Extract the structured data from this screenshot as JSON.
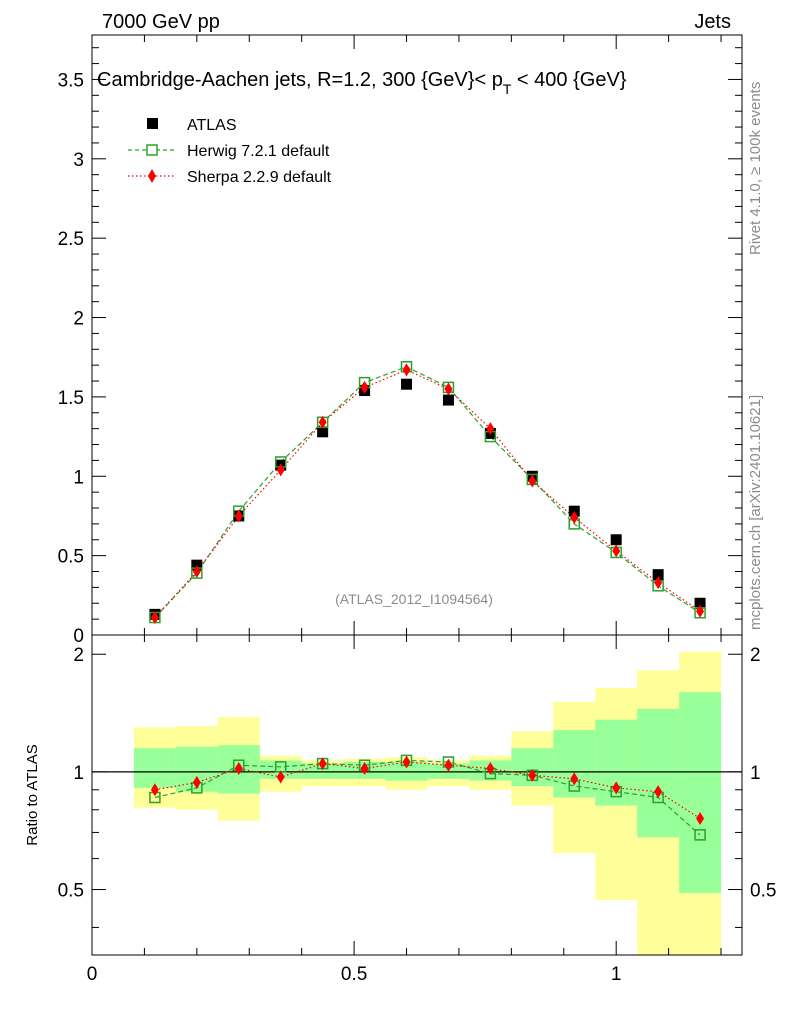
{
  "header": {
    "left": "7000 GeV pp",
    "right": "Jets"
  },
  "side_labels": {
    "rivet": "Rivet 4.1.0, ≥ 100k events",
    "mcplots": "mcplots.cern.ch [arXiv:2401.10621]"
  },
  "chart_data": {
    "type": "scatter",
    "title": "Cambridge-Aachen jets, R=1.2,  300 {GeV}< p_T < 400 {GeV}",
    "title_parts": {
      "pre": "Cambridge-Aachen jets, R=1.2,  300 {GeV}< p",
      "sub": "T",
      "post": " < 400 {GeV}"
    },
    "analysis_label": "(ATLAS_2012_I1094564)",
    "x": [
      0.12,
      0.2,
      0.28,
      0.36,
      0.44,
      0.52,
      0.6,
      0.68,
      0.76,
      0.84,
      0.92,
      1.0,
      1.08,
      1.16
    ],
    "xlim": [
      0,
      1.24
    ],
    "xticks": [
      "0",
      "0.5",
      "1"
    ],
    "xtick_values": [
      0,
      0.5,
      1
    ],
    "main": {
      "ylim": [
        0,
        3.78
      ],
      "yticks": [
        "0",
        "0.5",
        "1",
        "1.5",
        "2",
        "2.5",
        "3",
        "3.5"
      ],
      "ytick_values": [
        0,
        0.5,
        1,
        1.5,
        2,
        2.5,
        3,
        3.5
      ],
      "series": [
        {
          "name": "ATLAS",
          "color": "#000000",
          "marker": "square",
          "values": [
            0.13,
            0.44,
            0.75,
            1.07,
            1.28,
            1.54,
            1.58,
            1.48,
            1.27,
            1.0,
            0.78,
            0.6,
            0.38,
            0.2
          ]
        },
        {
          "name": "Herwig 7.2.1 default",
          "color": "#2ca02c",
          "marker": "open-square",
          "line": "dashed",
          "values": [
            0.11,
            0.39,
            0.78,
            1.09,
            1.34,
            1.59,
            1.69,
            1.56,
            1.25,
            0.98,
            0.7,
            0.52,
            0.31,
            0.14
          ]
        },
        {
          "name": "Sherpa 2.2.9 default",
          "color": "#ff0000",
          "marker": "diamond",
          "line": "dotted",
          "values": [
            0.11,
            0.4,
            0.75,
            1.04,
            1.34,
            1.56,
            1.67,
            1.55,
            1.3,
            0.97,
            0.74,
            0.53,
            0.33,
            0.15
          ]
        }
      ]
    },
    "ratio": {
      "ylabel": "Ratio to ATLAS",
      "ylim": [
        0.34,
        2.24
      ],
      "yticks": [
        "0.5",
        "1",
        "2"
      ],
      "ytick_values": [
        0.5,
        1,
        2
      ],
      "band_edges": [
        0.08,
        0.16,
        0.24,
        0.32,
        0.4,
        0.48,
        0.56,
        0.64,
        0.72,
        0.8,
        0.88,
        0.96,
        1.04,
        1.12,
        1.2
      ],
      "stat_band": [
        [
          0.91,
          1.15
        ],
        [
          0.89,
          1.16
        ],
        [
          0.88,
          1.17
        ],
        [
          0.96,
          1.07
        ],
        [
          0.96,
          1.05
        ],
        [
          0.96,
          1.06
        ],
        [
          0.95,
          1.06
        ],
        [
          0.96,
          1.05
        ],
        [
          0.95,
          1.07
        ],
        [
          0.92,
          1.15
        ],
        [
          0.86,
          1.28
        ],
        [
          0.82,
          1.36
        ],
        [
          0.68,
          1.45
        ],
        [
          0.49,
          1.6
        ]
      ],
      "total_band": [
        [
          0.81,
          1.3
        ],
        [
          0.8,
          1.31
        ],
        [
          0.75,
          1.38
        ],
        [
          0.89,
          1.1
        ],
        [
          0.92,
          1.07
        ],
        [
          0.92,
          1.08
        ],
        [
          0.9,
          1.09
        ],
        [
          0.92,
          1.07
        ],
        [
          0.9,
          1.1
        ],
        [
          0.82,
          1.27
        ],
        [
          0.62,
          1.51
        ],
        [
          0.47,
          1.64
        ],
        [
          0.34,
          1.82
        ],
        [
          0.34,
          2.03
        ]
      ],
      "series": [
        {
          "name": "Herwig 7.2.1 default",
          "color": "#2ca02c",
          "values": [
            0.86,
            0.91,
            1.04,
            1.03,
            1.05,
            1.04,
            1.07,
            1.06,
            0.99,
            0.98,
            0.92,
            0.89,
            0.86,
            0.69
          ]
        },
        {
          "name": "Sherpa 2.2.9 default",
          "color": "#ff0000",
          "values": [
            0.9,
            0.94,
            1.02,
            0.97,
            1.05,
            1.02,
            1.06,
            1.04,
            1.02,
            0.98,
            0.96,
            0.91,
            0.89,
            0.76
          ]
        }
      ]
    }
  }
}
